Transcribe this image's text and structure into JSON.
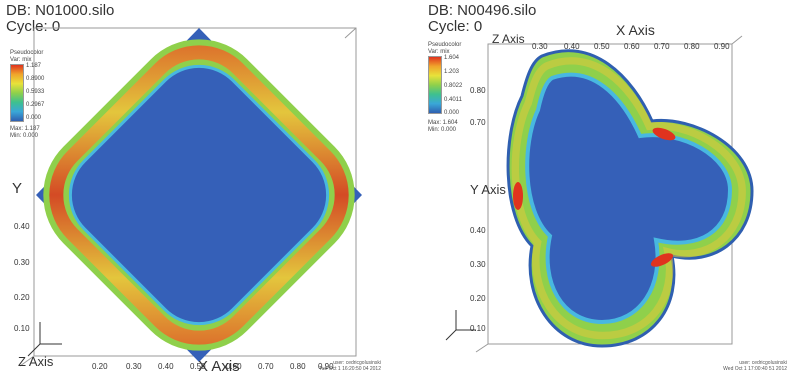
{
  "left": {
    "db_label": "DB: N01000.silo",
    "cycle_label": "Cycle: 0",
    "legend_title": "Pseudocolor",
    "legend_var": "Var: mix",
    "legend_levels": [
      "1.187",
      "0.8900",
      "0.5933",
      "0.2967",
      "0.000"
    ],
    "legend_max": "Max: 1.187",
    "legend_min": "Min: 0.000",
    "x_axis_title": "X Axis",
    "y_axis_title": "Y",
    "z_axis_title": "Z Axis",
    "x_ticks": [
      "0.20",
      "0.30",
      "0.40",
      "0.50",
      "0.60",
      "0.70",
      "0.80",
      "0.90"
    ],
    "y_ticks": [
      "0.40",
      "0.30",
      "0.20",
      "0.10"
    ],
    "user_line1": "user: cedricgolusinski",
    "user_line2": "Tue Oct 1 16:20:50 04 2012"
  },
  "right": {
    "db_label": "DB: N00496.silo",
    "cycle_label": "Cycle: 0",
    "legend_title": "Pseudocolor",
    "legend_var": "Var: mix",
    "legend_levels": [
      "1.604",
      "1.203",
      "0.8022",
      "0.4011",
      "0.000"
    ],
    "legend_max": "Max: 1.604",
    "legend_min": "Min: 0.000",
    "x_axis_title": "X Axis",
    "y_axis_title": "Y Axis",
    "z_axis_title": "Z Axis",
    "x_ticks": [
      "0.30",
      "0.40",
      "0.50",
      "0.60",
      "0.70",
      "0.80",
      "0.90"
    ],
    "y_ticks": [
      "0.80",
      "0.70",
      "0.40",
      "0.30",
      "0.20",
      "0.10"
    ],
    "user_line1": "user: cedricgolusinski",
    "user_line2": "Wed Oct 1 17:00:40 51 2012"
  },
  "colors": {
    "background_field": "#3560b8",
    "hot": "#e0331e",
    "warm": "#f0a52b",
    "mid": "#e8e23a",
    "cool": "#59c45c",
    "cold": "#48b8e0"
  }
}
